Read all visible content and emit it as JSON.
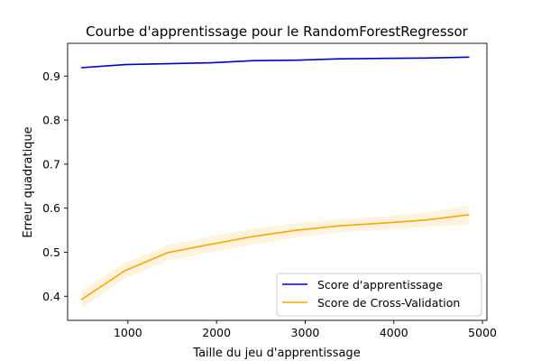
{
  "chart_data": {
    "type": "line",
    "title": "Courbe d'apprentissage pour le RandomForestRegressor",
    "xlabel": "Taille du jeu d'apprentissage",
    "ylabel": "Erreur quadratique",
    "xlim": [
      320,
      5050
    ],
    "ylim": [
      0.3452,
      0.9743
    ],
    "x_ticks": [
      1000,
      2000,
      3000,
      4000,
      5000
    ],
    "x_tick_labels": [
      "1000",
      "2000",
      "3000",
      "4000",
      "5000"
    ],
    "y_ticks": [
      0.4,
      0.5,
      0.6,
      0.7,
      0.8,
      0.9
    ],
    "y_tick_labels": [
      "0.4",
      "0.5",
      "0.6",
      "0.7",
      "0.8",
      "0.9"
    ],
    "grid": false,
    "legend_position": "lower right",
    "x": [
      480,
      965,
      1450,
      1935,
      2420,
      2905,
      3390,
      3875,
      4360,
      4845
    ],
    "series": [
      {
        "name": "Score d'apprentissage",
        "color": "#0000cc",
        "values": [
          0.919,
          0.926,
          0.928,
          0.93,
          0.935,
          0.936,
          0.939,
          0.94,
          0.941,
          0.943
        ],
        "band_low": [
          0.918,
          0.925,
          0.927,
          0.929,
          0.934,
          0.935,
          0.938,
          0.939,
          0.94,
          0.942
        ],
        "band_high": [
          0.92,
          0.927,
          0.929,
          0.931,
          0.936,
          0.937,
          0.94,
          0.941,
          0.942,
          0.944
        ]
      },
      {
        "name": "Score de Cross-Validation",
        "color": "#ffa500",
        "values": [
          0.393,
          0.458,
          0.499,
          0.518,
          0.536,
          0.55,
          0.56,
          0.566,
          0.573,
          0.585
        ],
        "band_low": [
          0.372,
          0.44,
          0.481,
          0.5,
          0.518,
          0.534,
          0.545,
          0.551,
          0.557,
          0.563
        ],
        "band_high": [
          0.414,
          0.476,
          0.517,
          0.536,
          0.554,
          0.566,
          0.575,
          0.581,
          0.589,
          0.607
        ]
      }
    ]
  }
}
